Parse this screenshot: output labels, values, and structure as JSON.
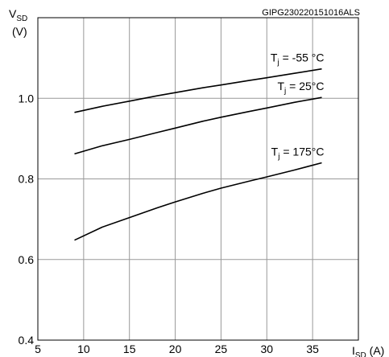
{
  "figure_code": "GIPG230220151016ALS",
  "chart_data": {
    "type": "line",
    "ylabel": {
      "main": "V",
      "sub": "SD",
      "unit": "(V)"
    },
    "xlabel": {
      "main": "I",
      "sub": "SD",
      "unit": " (A)"
    },
    "xlim": [
      5,
      40
    ],
    "ylim": [
      0.4,
      1.2
    ],
    "xticks": [
      5,
      10,
      15,
      20,
      25,
      30,
      35
    ],
    "yticks": [
      0.4,
      0.6,
      0.8,
      1.0
    ],
    "ytick_labels": [
      "0.4",
      "0.6",
      "0.8",
      "1.0"
    ],
    "grid": true,
    "series": [
      {
        "label": {
          "main": "T",
          "sub": "j",
          "rest": " = -55 °C"
        },
        "x": [
          9,
          12,
          15,
          18,
          20,
          23,
          25,
          28,
          30,
          33,
          36
        ],
        "y": [
          0.965,
          0.98,
          0.993,
          1.006,
          1.014,
          1.026,
          1.033,
          1.044,
          1.051,
          1.062,
          1.073
        ]
      },
      {
        "label": {
          "main": "T",
          "sub": "j",
          "rest": " = 25°C"
        },
        "x": [
          9,
          12,
          15,
          18,
          20,
          23,
          25,
          28,
          30,
          33,
          36
        ],
        "y": [
          0.862,
          0.882,
          0.898,
          0.915,
          0.926,
          0.943,
          0.953,
          0.967,
          0.976,
          0.99,
          1.002
        ]
      },
      {
        "label": {
          "main": "T",
          "sub": "j",
          "rest": " = 175°C"
        },
        "x": [
          9,
          12,
          15,
          18,
          20,
          23,
          25,
          28,
          30,
          33,
          36
        ],
        "y": [
          0.648,
          0.68,
          0.704,
          0.728,
          0.743,
          0.764,
          0.777,
          0.794,
          0.805,
          0.822,
          0.84
        ]
      }
    ]
  }
}
